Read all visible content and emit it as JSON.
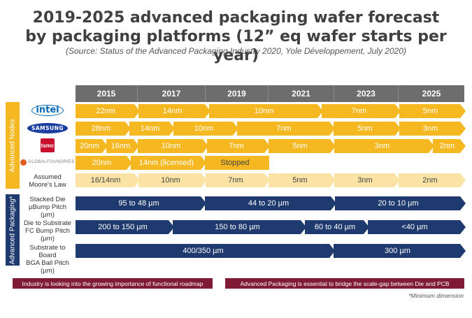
{
  "title_line1": "2019-2025 advanced packaging wafer forecast",
  "title_line2": "by packaging platforms (12” eq wafer starts per year)",
  "subtitle": "(Source: Status of the Advanced Packaging Industry 2020, Yole Développement, July 2020)",
  "years": [
    "2015",
    "2017",
    "2019",
    "2021",
    "2023",
    "2025"
  ],
  "side_labels": {
    "nodes": "Advanced Nodes",
    "packaging": "Advanced Packaging*"
  },
  "logos": {
    "intel": "intel",
    "samsung": "SAMSUNG",
    "tsmc": "tsmc",
    "globalfoundries": "GLOBALFOUNDRIES"
  },
  "colors": {
    "node": "#f5b820",
    "moore": "#fbe3a6",
    "packaging": "#1e3a6e",
    "note": "#7f1b35",
    "header": "#6d6d6d"
  },
  "rows": {
    "intel": [
      "22nm",
      "14nm",
      "10nm",
      "7nm",
      "5nm"
    ],
    "samsung": [
      "28nm",
      "14nm",
      "10nm",
      "7nm",
      "5nm",
      "3nm"
    ],
    "tsmc": [
      "20nm",
      "16nm",
      "10nm",
      "7nm",
      "5nm",
      "3nm",
      "2nm"
    ],
    "globalfoundries": [
      "20nm",
      "14nm (licensed)",
      "Stopped"
    ],
    "moore": {
      "label_line1": "Assumed",
      "label_line2": "Moore's Law",
      "values": [
        "16/14nm",
        "10nm",
        "7nm",
        "5nm",
        "3nm",
        "2nm"
      ]
    },
    "stacked_die": {
      "label_line1": "Stacked Die",
      "label_line2": "µBump Pitch (µm)",
      "values": [
        "95 to 48 µm",
        "44 to 20 µm",
        "20 to 10 µm"
      ]
    },
    "die_to_substrate": {
      "label_line1": "Die to Substrate",
      "label_line2": "FC Bump Pitch (µm)",
      "values": [
        "200 to 150 µm",
        "150 to 80 µm",
        "60 to 40 µm",
        "<40 µm"
      ]
    },
    "substrate_to_board": {
      "label_line1": "Substrate to Board",
      "label_line2": "BGA Ball Pitch (µm)",
      "values": [
        "400/350 µm",
        "300 µm"
      ]
    }
  },
  "notes": {
    "left": "Industry is looking into the growing importance of functional roadmap",
    "right": "Advanced Packaging is essential to bridge the scale-gap between Die and PCB"
  },
  "footnote": "*Minimum dimension"
}
